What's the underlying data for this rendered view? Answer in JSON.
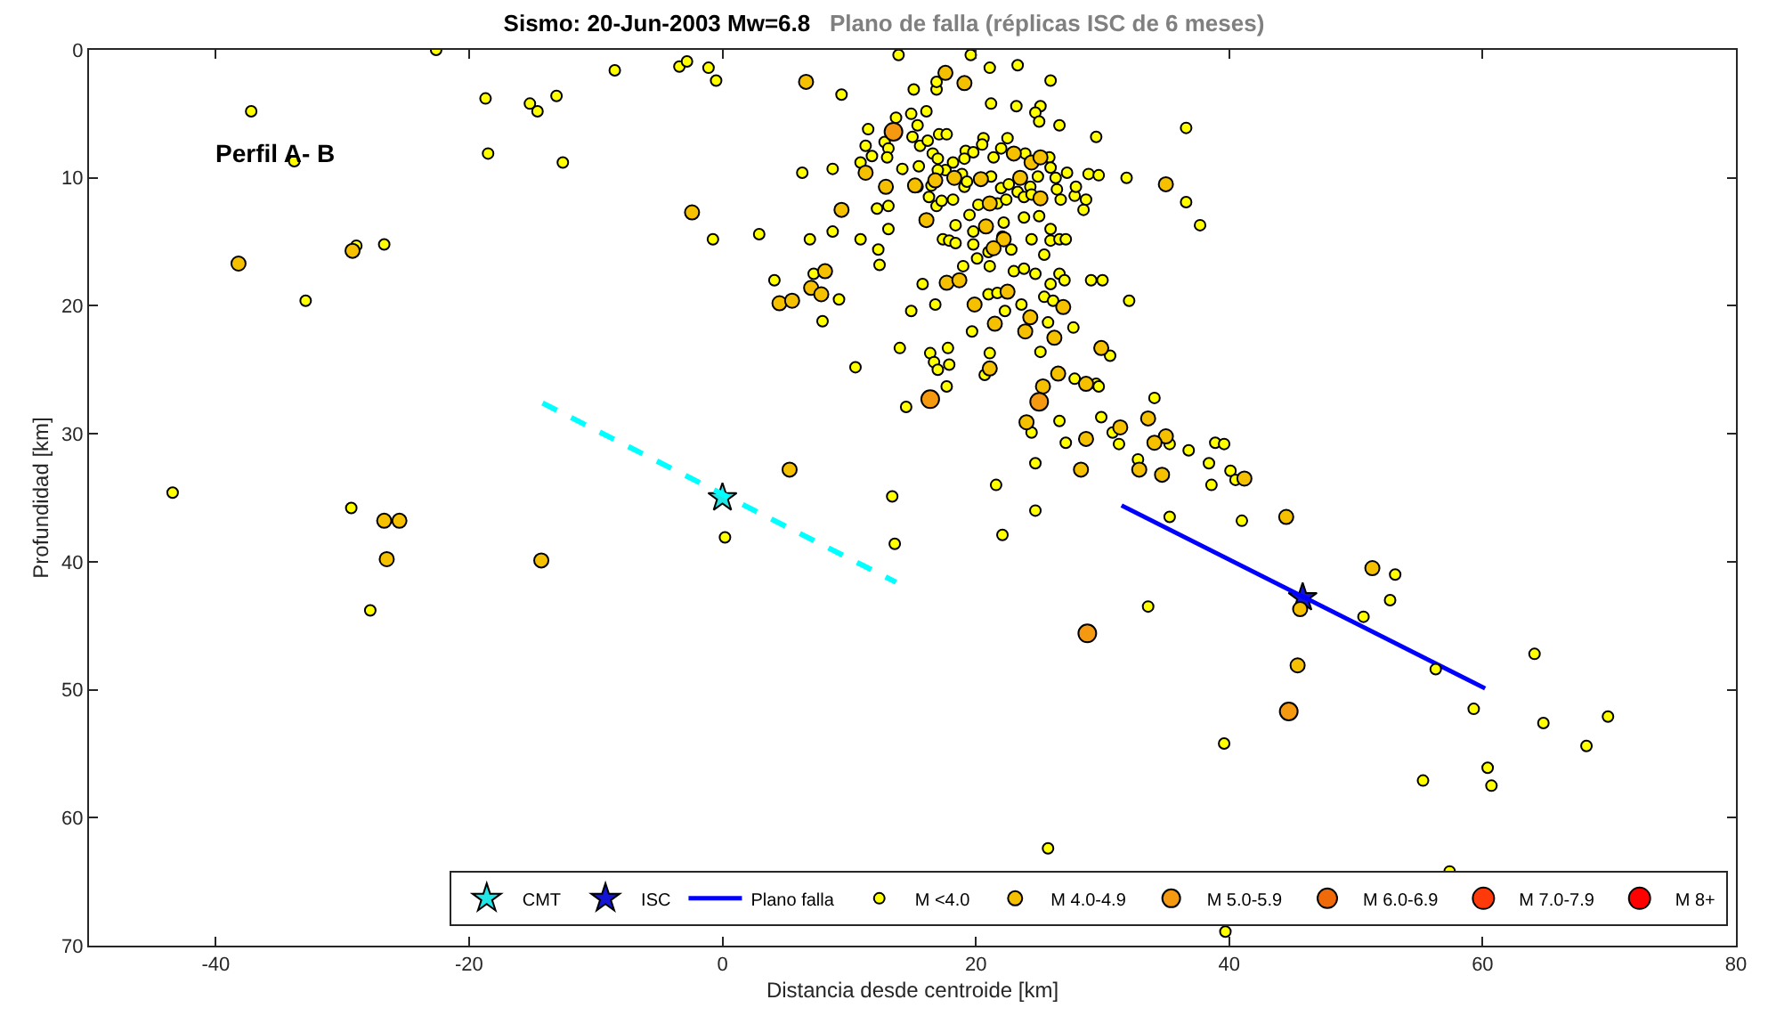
{
  "chart_data": {
    "type": "scatter",
    "title": "Sismo: 20-Jun-2003 Mw=6.8",
    "subtitle": "Plano de falla (réplicas ISC de 6 meses)",
    "xlabel": "Distancia desde centroide [km]",
    "ylabel": "Profundidad [km]",
    "annotations": [
      "Perfil A- B"
    ],
    "xlim": [
      -50,
      80
    ],
    "xticks": [
      -40,
      -20,
      0,
      20,
      40,
      60,
      80
    ],
    "ylim": [
      70,
      0
    ],
    "yticks": [
      0,
      10,
      20,
      30,
      40,
      50,
      60,
      70
    ],
    "legend": "bottom",
    "series": [
      {
        "name": "CMT",
        "marker": "star",
        "color": "#22e5e5",
        "x": [
          0
        ],
        "values": [
          35
        ]
      },
      {
        "name": "ISC",
        "marker": "star",
        "color": "#1414d6",
        "x": [
          45.8
        ],
        "values": [
          42.8
        ]
      },
      {
        "name": "Plano falla",
        "type": "line",
        "marker": "none",
        "line_style": "solid",
        "color": "#0000ff",
        "x": [
          31.5,
          60.2
        ],
        "values": [
          35.6,
          49.9
        ]
      },
      {
        "type": "line",
        "marker": "none",
        "line_style": "dashed",
        "color": "#00ffff",
        "x": [
          -14.2,
          13.7
        ],
        "values": [
          27.6,
          41.6
        ]
      },
      {
        "name": "M <4.0",
        "marker": "circle",
        "color": "#ffff00",
        "x": [
          -3.4,
          -2.8,
          -1.1,
          -0.5,
          13.9,
          19.6,
          21.1,
          23.3,
          25.9,
          9.4,
          15.1,
          16.9,
          16.9,
          21.2,
          23.2,
          25.1,
          24.7,
          25,
          26.6,
          29.5,
          36.6,
          14.9,
          16.1,
          13.7,
          15.4,
          11.5,
          15.0,
          17.1,
          17.7,
          20.6,
          22.5,
          12.8,
          11.3,
          15.6,
          16.2,
          13.1,
          11.8,
          13.0,
          10.9,
          14.2,
          15.5,
          16.6,
          17.0,
          19.2,
          19.8,
          20.5,
          19.1,
          21.4,
          22.0,
          23.9,
          25.8,
          18.2,
          17.6,
          17.0,
          18.9,
          21.2,
          22.0,
          22.6,
          23.3,
          24.3,
          24.9,
          25.9,
          26.3,
          27.2,
          28.9,
          29.7,
          31.9,
          6.3,
          8.7,
          15.4,
          16.5,
          19.1,
          19.3,
          16.3,
          16.9,
          17.3,
          18.2,
          20.2,
          21.7,
          22.4,
          23.8,
          24.4,
          26.4,
          26.7,
          27.8,
          27.9,
          28.7,
          28.5,
          36.6,
          37.7,
          12.2,
          13.1,
          13.1,
          19.5,
          18.4,
          19.8,
          22.2,
          23.8,
          25.0,
          25.9,
          22.1,
          24.4,
          25.9,
          26.6,
          27.1,
          -0.75,
          2.9,
          6.9,
          8.7,
          10.9,
          12.3,
          12.4,
          17.4,
          17.9,
          18.4,
          19.8,
          21.0,
          22.8,
          25.4,
          19.0,
          20.1,
          21.1,
          23.0,
          23.8,
          24.7,
          26.6,
          27.0,
          29.1,
          30.0,
          25.9,
          25.4,
          26.1,
          32.1,
          4.1,
          7.2,
          9.2,
          15.8,
          16.8,
          21.0,
          21.7,
          22.3,
          23.6,
          7.9,
          14.9,
          19.7,
          25.7,
          27.7,
          25.1,
          30.6,
          14.0,
          16.4,
          17.8,
          16.7,
          17.0,
          17.9,
          21.1,
          10.5,
          17.7,
          20.7,
          27.8,
          29.5,
          29.7,
          34.1,
          14.5,
          24.4,
          26.6,
          27.1,
          29.9,
          30.8,
          31.3,
          35.3,
          36.8,
          38.9,
          39.6,
          38.4,
          40.1,
          40.5,
          38.6,
          32.8,
          24.7,
          21.6,
          13.4,
          24.7,
          35.3,
          41.0,
          22.1,
          13.6,
          0.2,
          33.6,
          -22.6,
          -37.2,
          -33.8,
          -18.7,
          -18.5,
          -15.2,
          -14.6,
          -13.1,
          -12.6,
          -8.5,
          -28.9,
          -26.7,
          -32.9,
          -43.4,
          -29.3,
          -27.8,
          53.1,
          52.7,
          50.6,
          56.3,
          64.1,
          59.3,
          64.8,
          69.9,
          68.2,
          39.6,
          55.3,
          60.4,
          60.7,
          57.4,
          25.7,
          39.7
        ],
        "values": [
          1.3,
          0.9,
          1.4,
          2.4,
          0.4,
          0.4,
          1.4,
          1.2,
          2.4,
          3.5,
          3.1,
          3.1,
          2.5,
          4.2,
          4.4,
          4.4,
          4.9,
          5.6,
          5.9,
          6.8,
          6.1,
          5.0,
          4.8,
          5.3,
          5.9,
          6.2,
          6.8,
          6.6,
          6.6,
          6.9,
          6.9,
          7.2,
          7.5,
          7.5,
          7.1,
          7.7,
          8.3,
          8.4,
          8.8,
          9.3,
          9.1,
          8.1,
          8.5,
          7.9,
          8.0,
          7.4,
          8.5,
          8.4,
          7.7,
          8.1,
          8.4,
          8.8,
          9.4,
          9.4,
          9.7,
          9.9,
          10.8,
          10.5,
          11.1,
          10.7,
          9.9,
          9.2,
          10.0,
          9.6,
          9.7,
          9.8,
          10.0,
          9.6,
          9.3,
          10.7,
          10.6,
          10.7,
          10.3,
          11.5,
          12.2,
          11.8,
          11.7,
          12.1,
          12.0,
          11.7,
          11.5,
          11.3,
          10.9,
          11.7,
          11.4,
          10.7,
          11.7,
          12.5,
          11.9,
          13.7,
          12.4,
          12.2,
          14.0,
          12.9,
          13.7,
          14.2,
          13.5,
          13.1,
          13.0,
          14.0,
          14.6,
          14.8,
          14.9,
          14.8,
          14.8,
          14.8,
          14.4,
          14.8,
          14.2,
          14.8,
          15.6,
          16.8,
          14.8,
          14.9,
          15.1,
          15.2,
          15.8,
          15.6,
          16.0,
          16.9,
          16.3,
          16.9,
          17.3,
          17.1,
          17.5,
          17.5,
          18.0,
          18.0,
          18.0,
          18.3,
          19.3,
          19.6,
          19.6,
          18.0,
          17.5,
          19.5,
          18.3,
          19.9,
          19.1,
          19.0,
          20.4,
          19.9,
          21.2,
          20.4,
          22.0,
          21.3,
          21.7,
          23.6,
          23.9,
          23.3,
          23.7,
          23.3,
          24.4,
          25.0,
          24.6,
          23.7,
          24.8,
          26.3,
          25.4,
          25.7,
          26.1,
          26.3,
          27.2,
          27.9,
          29.9,
          29.0,
          30.7,
          28.7,
          29.9,
          30.8,
          30.8,
          31.3,
          30.7,
          30.8,
          32.3,
          32.9,
          33.6,
          34.0,
          32.0,
          32.3,
          34.0,
          34.9,
          36.0,
          36.5,
          36.8,
          37.9,
          38.6,
          38.1,
          43.5,
          0.0,
          4.8,
          8.7,
          3.8,
          8.1,
          4.2,
          4.8,
          3.6,
          8.8,
          1.6,
          15.3,
          15.2,
          19.6,
          34.6,
          35.8,
          43.8,
          41.0,
          43.0,
          44.3,
          48.4,
          47.2,
          51.5,
          52.6,
          52.1,
          54.4,
          54.2,
          57.1,
          56.1,
          57.5,
          64.2,
          62.4,
          68.9
        ]
      },
      {
        "name": "M 4.0-4.9",
        "marker": "circle",
        "color": "#f5c000",
        "x": [
          17.6,
          19.1,
          6.6,
          -2.4,
          9.4,
          11.3,
          12.9,
          15.2,
          16.8,
          18.3,
          20.4,
          23.0,
          24.4,
          25.1,
          23.5,
          25.1,
          21.1,
          16.1,
          20.8,
          22.2,
          21.4,
          35.0,
          8.1,
          7.0,
          7.8,
          4.5,
          5.5,
          17.7,
          18.7,
          22.5,
          26.9,
          19.9,
          21.5,
          24.3,
          23.9,
          26.2,
          29.9,
          21.1,
          26.5,
          28.7,
          25.3,
          5.3,
          24.0,
          28.7,
          33.6,
          31.4,
          35.0,
          34.1,
          32.9,
          34.7,
          28.3,
          41.2,
          -38.2,
          -29.2,
          -26.7,
          -25.5,
          -26.5,
          -14.3,
          44.5,
          51.3,
          45.6,
          45.4
        ],
        "values": [
          1.8,
          2.6,
          2.5,
          12.7,
          12.5,
          9.6,
          10.7,
          10.6,
          10.2,
          10.0,
          10.1,
          8.1,
          8.8,
          8.4,
          10.0,
          11.6,
          12.0,
          13.3,
          13.8,
          14.8,
          15.5,
          10.5,
          17.3,
          18.6,
          19.1,
          19.8,
          19.6,
          18.2,
          18.0,
          18.9,
          20.1,
          19.9,
          21.4,
          20.9,
          22.0,
          22.5,
          23.3,
          24.9,
          25.3,
          26.1,
          26.3,
          32.8,
          29.1,
          30.4,
          28.8,
          29.5,
          30.2,
          30.7,
          32.8,
          33.2,
          32.8,
          33.5,
          16.7,
          15.7,
          36.8,
          36.8,
          39.8,
          39.9,
          36.5,
          40.5,
          43.7,
          48.1
        ]
      },
      {
        "name": "M 5.0-5.9",
        "marker": "circle",
        "color": "#f59a10",
        "x": [
          13.5,
          16.4,
          25.0,
          28.8,
          44.7
        ],
        "values": [
          6.4,
          27.3,
          27.5,
          45.6,
          51.7
        ]
      },
      {
        "name": "M 6.0-6.9",
        "marker": "circle",
        "color": "#f06a0a"
      },
      {
        "name": "M 7.0-7.9",
        "marker": "circle",
        "color": "#ff3a0a"
      },
      {
        "name": "M 8+",
        "marker": "circle",
        "color": "#ff0000"
      }
    ]
  }
}
